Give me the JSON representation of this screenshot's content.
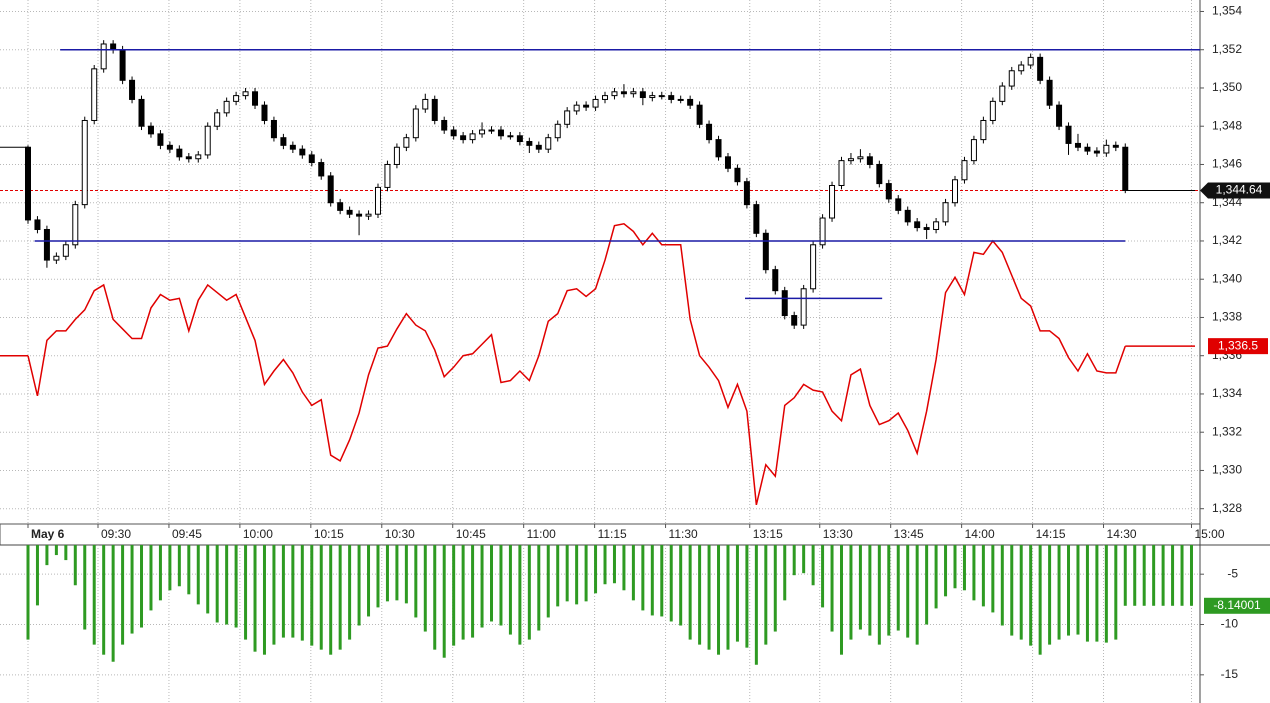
{
  "chart_data": [
    {
      "type": "candlestick",
      "xlim": [
        -2.96,
        123.9
      ],
      "xticks": [
        {
          "value": 0,
          "label": "May 6"
        },
        {
          "value": 7.4,
          "label": "09:30"
        },
        {
          "value": 14.9,
          "label": "09:45"
        },
        {
          "value": 22.4,
          "label": "10:00"
        },
        {
          "value": 29.9,
          "label": "10:15"
        },
        {
          "value": 37.4,
          "label": "10:30"
        },
        {
          "value": 44.9,
          "label": "10:45"
        },
        {
          "value": 52.4,
          "label": "11:00"
        },
        {
          "value": 59.9,
          "label": "11:15"
        },
        {
          "value": 67.4,
          "label": "11:30"
        },
        {
          "value": 76.3,
          "label": "13:15"
        },
        {
          "value": 83.7,
          "label": "13:30"
        },
        {
          "value": 91.2,
          "label": "13:45"
        },
        {
          "value": 98.7,
          "label": "14:00"
        },
        {
          "value": 106.2,
          "label": "14:15"
        },
        {
          "value": 113.7,
          "label": "14:30"
        },
        {
          "value": 123.0,
          "label": "15:00"
        }
      ],
      "ylim": [
        1327.2,
        1354.6
      ],
      "yticks": [
        {
          "value": 1328,
          "label": "1,328"
        },
        {
          "value": 1330,
          "label": "1,330"
        },
        {
          "value": 1332,
          "label": "1,332"
        },
        {
          "value": 1334,
          "label": "1,334"
        },
        {
          "value": 1336,
          "label": "1,336"
        },
        {
          "value": 1338,
          "label": "1,338"
        },
        {
          "value": 1340,
          "label": "1,340"
        },
        {
          "value": 1342,
          "label": "1,342"
        },
        {
          "value": 1344,
          "label": "1,344"
        },
        {
          "value": 1346,
          "label": "1,346"
        },
        {
          "value": 1348,
          "label": "1,348"
        },
        {
          "value": 1350,
          "label": "1,350"
        },
        {
          "value": 1352,
          "label": "1,352"
        },
        {
          "value": 1354,
          "label": "1,354"
        }
      ],
      "grid": true,
      "candle_color": "#000000",
      "candles": [
        [
          1346.9,
          1347.0,
          1342.9,
          1343.1
        ],
        [
          1343.1,
          1343.3,
          1342.4,
          1342.6
        ],
        [
          1342.6,
          1342.8,
          1340.6,
          1341.0
        ],
        [
          1341.0,
          1341.4,
          1340.8,
          1341.2
        ],
        [
          1341.2,
          1342.0,
          1341.0,
          1341.8
        ],
        [
          1341.8,
          1344.1,
          1341.6,
          1343.9
        ],
        [
          1343.9,
          1348.5,
          1343.7,
          1348.3
        ],
        [
          1348.3,
          1351.2,
          1348.1,
          1351.0
        ],
        [
          1351.0,
          1352.5,
          1350.8,
          1352.3
        ],
        [
          1352.3,
          1352.5,
          1351.8,
          1352.0
        ],
        [
          1352.0,
          1352.2,
          1350.2,
          1350.4
        ],
        [
          1350.4,
          1350.6,
          1349.2,
          1349.4
        ],
        [
          1349.4,
          1349.6,
          1347.8,
          1348.0
        ],
        [
          1348.0,
          1348.2,
          1347.4,
          1347.6
        ],
        [
          1347.6,
          1347.8,
          1346.8,
          1347.0
        ],
        [
          1347.0,
          1347.2,
          1346.6,
          1346.8
        ],
        [
          1346.8,
          1347.0,
          1346.2,
          1346.4
        ],
        [
          1346.4,
          1346.6,
          1346.1,
          1346.3
        ],
        [
          1346.3,
          1346.7,
          1346.1,
          1346.5
        ],
        [
          1346.5,
          1348.2,
          1346.3,
          1348.0
        ],
        [
          1348.0,
          1348.9,
          1347.8,
          1348.7
        ],
        [
          1348.7,
          1349.5,
          1348.5,
          1349.3
        ],
        [
          1349.3,
          1349.8,
          1349.1,
          1349.6
        ],
        [
          1349.6,
          1350.0,
          1349.4,
          1349.8
        ],
        [
          1349.8,
          1350.0,
          1348.9,
          1349.1
        ],
        [
          1349.1,
          1349.3,
          1348.1,
          1348.3
        ],
        [
          1348.3,
          1348.5,
          1347.2,
          1347.4
        ],
        [
          1347.4,
          1347.6,
          1346.8,
          1347.0
        ],
        [
          1347.0,
          1347.2,
          1346.6,
          1346.8
        ],
        [
          1346.8,
          1347.0,
          1346.3,
          1346.5
        ],
        [
          1346.5,
          1346.7,
          1345.9,
          1346.1
        ],
        [
          1346.1,
          1346.3,
          1345.2,
          1345.4
        ],
        [
          1345.4,
          1345.6,
          1343.8,
          1344.0
        ],
        [
          1344.0,
          1344.2,
          1343.4,
          1343.6
        ],
        [
          1343.6,
          1343.8,
          1343.2,
          1343.4
        ],
        [
          1343.4,
          1343.6,
          1342.3,
          1343.3
        ],
        [
          1343.3,
          1343.6,
          1343.1,
          1343.4
        ],
        [
          1343.4,
          1345.0,
          1343.2,
          1344.8
        ],
        [
          1344.8,
          1346.2,
          1344.6,
          1346.0
        ],
        [
          1346.0,
          1347.1,
          1345.8,
          1346.9
        ],
        [
          1346.9,
          1347.6,
          1346.7,
          1347.4
        ],
        [
          1347.4,
          1349.1,
          1347.2,
          1348.9
        ],
        [
          1348.9,
          1349.7,
          1348.7,
          1349.4
        ],
        [
          1349.4,
          1349.6,
          1348.1,
          1348.3
        ],
        [
          1348.3,
          1348.5,
          1347.6,
          1347.8
        ],
        [
          1347.8,
          1348.0,
          1347.3,
          1347.5
        ],
        [
          1347.5,
          1347.7,
          1347.1,
          1347.3
        ],
        [
          1347.3,
          1347.8,
          1347.1,
          1347.6
        ],
        [
          1347.6,
          1348.2,
          1347.4,
          1347.8
        ],
        [
          1347.8,
          1348.0,
          1347.6,
          1347.8
        ],
        [
          1347.8,
          1348.0,
          1347.3,
          1347.5
        ],
        [
          1347.5,
          1347.7,
          1347.3,
          1347.5
        ],
        [
          1347.5,
          1347.7,
          1347.0,
          1347.2
        ],
        [
          1347.2,
          1347.4,
          1346.6,
          1347.0
        ],
        [
          1347.0,
          1347.2,
          1346.6,
          1346.8
        ],
        [
          1346.8,
          1347.6,
          1346.6,
          1347.4
        ],
        [
          1347.4,
          1348.3,
          1347.2,
          1348.1
        ],
        [
          1348.1,
          1349.0,
          1347.9,
          1348.8
        ],
        [
          1348.8,
          1349.3,
          1348.6,
          1349.1
        ],
        [
          1349.1,
          1349.3,
          1348.8,
          1349.0
        ],
        [
          1349.0,
          1349.6,
          1348.8,
          1349.4
        ],
        [
          1349.4,
          1349.8,
          1349.2,
          1349.6
        ],
        [
          1349.6,
          1350.0,
          1349.4,
          1349.8
        ],
        [
          1349.8,
          1350.2,
          1349.5,
          1349.7
        ],
        [
          1349.7,
          1350.0,
          1349.5,
          1349.8
        ],
        [
          1349.8,
          1350.0,
          1349.1,
          1349.5
        ],
        [
          1349.5,
          1349.8,
          1349.3,
          1349.6
        ],
        [
          1349.6,
          1349.8,
          1349.4,
          1349.6
        ],
        [
          1349.6,
          1349.8,
          1349.2,
          1349.4
        ],
        [
          1349.4,
          1349.6,
          1349.2,
          1349.4
        ],
        [
          1349.4,
          1349.6,
          1348.9,
          1349.1
        ],
        [
          1349.1,
          1349.3,
          1347.9,
          1348.1
        ],
        [
          1348.1,
          1348.3,
          1347.1,
          1347.3
        ],
        [
          1347.3,
          1347.5,
          1346.2,
          1346.4
        ],
        [
          1346.4,
          1346.6,
          1345.6,
          1345.8
        ],
        [
          1345.8,
          1346.0,
          1344.9,
          1345.1
        ],
        [
          1345.1,
          1345.3,
          1343.7,
          1343.9
        ],
        [
          1343.9,
          1344.1,
          1342.2,
          1342.4
        ],
        [
          1342.4,
          1342.6,
          1340.3,
          1340.5
        ],
        [
          1340.5,
          1340.7,
          1339.2,
          1339.4
        ],
        [
          1339.4,
          1339.6,
          1337.9,
          1338.1
        ],
        [
          1338.1,
          1338.3,
          1337.4,
          1337.6
        ],
        [
          1337.6,
          1339.7,
          1337.4,
          1339.5
        ],
        [
          1339.5,
          1342.0,
          1339.3,
          1341.8
        ],
        [
          1341.8,
          1343.4,
          1341.6,
          1343.2
        ],
        [
          1343.2,
          1345.1,
          1343.0,
          1344.9
        ],
        [
          1344.9,
          1346.4,
          1344.7,
          1346.2
        ],
        [
          1346.2,
          1346.6,
          1346.0,
          1346.3
        ],
        [
          1346.3,
          1346.8,
          1346.1,
          1346.4
        ],
        [
          1346.4,
          1346.6,
          1345.8,
          1346.0
        ],
        [
          1346.0,
          1346.2,
          1344.8,
          1345.0
        ],
        [
          1345.0,
          1345.2,
          1344.0,
          1344.2
        ],
        [
          1344.2,
          1344.4,
          1343.4,
          1343.6
        ],
        [
          1343.6,
          1343.8,
          1342.8,
          1343.0
        ],
        [
          1343.0,
          1343.2,
          1342.5,
          1342.7
        ],
        [
          1342.7,
          1342.9,
          1342.1,
          1342.6
        ],
        [
          1342.6,
          1343.2,
          1342.4,
          1343.0
        ],
        [
          1343.0,
          1344.2,
          1342.8,
          1344.0
        ],
        [
          1344.0,
          1345.4,
          1343.8,
          1345.2
        ],
        [
          1345.2,
          1346.4,
          1345.0,
          1346.2
        ],
        [
          1346.2,
          1347.5,
          1346.0,
          1347.3
        ],
        [
          1347.3,
          1348.5,
          1347.1,
          1348.3
        ],
        [
          1348.3,
          1349.5,
          1348.1,
          1349.3
        ],
        [
          1349.3,
          1350.3,
          1349.1,
          1350.1
        ],
        [
          1350.1,
          1351.1,
          1349.9,
          1350.9
        ],
        [
          1350.9,
          1351.4,
          1350.7,
          1351.2
        ],
        [
          1351.2,
          1351.8,
          1351.0,
          1351.6
        ],
        [
          1351.6,
          1351.8,
          1350.2,
          1350.4
        ],
        [
          1350.4,
          1350.6,
          1348.9,
          1349.1
        ],
        [
          1349.1,
          1349.3,
          1347.8,
          1348.0
        ],
        [
          1348.0,
          1348.2,
          1346.5,
          1347.1
        ],
        [
          1347.1,
          1347.6,
          1346.7,
          1346.9
        ],
        [
          1346.9,
          1347.1,
          1346.5,
          1346.7
        ],
        [
          1346.7,
          1346.9,
          1346.4,
          1346.6
        ],
        [
          1346.6,
          1347.3,
          1346.4,
          1347.0
        ],
        [
          1347.0,
          1347.2,
          1346.7,
          1346.9
        ],
        [
          1346.9,
          1347.1,
          1344.5,
          1344.64
        ]
      ],
      "last_label": "1,344.64",
      "last_line_color": "#e00000",
      "series": [
        {
          "type": "line",
          "color": "#e00000",
          "last_label": "1,336.5",
          "values": [
            1336.0,
            1333.9,
            1336.8,
            1337.3,
            1337.3,
            1337.9,
            1338.4,
            1339.4,
            1339.7,
            1337.9,
            1337.4,
            1336.9,
            1336.9,
            1338.5,
            1339.2,
            1338.9,
            1339.0,
            1337.3,
            1338.9,
            1339.7,
            1339.3,
            1338.9,
            1339.2,
            1338.0,
            1336.8,
            1334.5,
            1335.2,
            1335.8,
            1335.1,
            1334.1,
            1333.4,
            1333.7,
            1330.8,
            1330.5,
            1331.6,
            1333.0,
            1335.0,
            1336.4,
            1336.5,
            1337.4,
            1338.2,
            1337.6,
            1337.3,
            1336.3,
            1334.9,
            1335.4,
            1336.0,
            1336.1,
            1336.6,
            1337.1,
            1334.6,
            1334.7,
            1335.2,
            1334.7,
            1336.0,
            1337.8,
            1338.2,
            1339.4,
            1339.5,
            1339.1,
            1339.5,
            1341.0,
            1342.8,
            1342.9,
            1342.5,
            1341.8,
            1342.4,
            1341.8,
            1341.8,
            1341.8,
            1337.9,
            1336.0,
            1335.4,
            1334.7,
            1333.3,
            1334.5,
            1333.1,
            1328.2,
            1330.3,
            1329.7,
            1333.4,
            1333.8,
            1334.5,
            1334.2,
            1334.1,
            1333.1,
            1332.6,
            1335.0,
            1335.3,
            1333.4,
            1332.4,
            1332.6,
            1333.0,
            1332.1,
            1330.9,
            1333.1,
            1335.8,
            1339.3,
            1340.1,
            1339.2,
            1341.4,
            1341.3,
            1342.0,
            1341.4,
            1340.2,
            1339.0,
            1338.6,
            1337.3,
            1337.3,
            1336.9,
            1335.9,
            1335.2,
            1336.1,
            1335.2,
            1335.1,
            1335.1,
            1336.5
          ]
        }
      ],
      "level_color": "#1a1aa6",
      "levels": [
        {
          "value": 1352,
          "x": [
            3.4,
            123.9
          ]
        },
        {
          "value": 1342,
          "x": [
            0.7,
            116
          ]
        },
        {
          "value": 1339,
          "x": [
            75.8,
            90.3
          ]
        }
      ]
    },
    {
      "type": "bar",
      "color": "#2e9a22",
      "ylim": [
        -17.8,
        -2.1
      ],
      "yticks": [
        -5,
        -10,
        -15
      ],
      "grid": true,
      "values": [
        -11.5,
        -8.1,
        -4.1,
        -3.1,
        -3.6,
        -6.1,
        -10.5,
        -12.0,
        -13.0,
        -13.7,
        -12.0,
        -10.9,
        -10.3,
        -8.6,
        -7.6,
        -6.6,
        -6.2,
        -7.0,
        -8.0,
        -8.9,
        -9.8,
        -10.0,
        -10.3,
        -11.5,
        -12.7,
        -13.0,
        -12.0,
        -11.3,
        -11.3,
        -11.6,
        -12.1,
        -12.5,
        -13.0,
        -12.5,
        -11.5,
        -10.1,
        -9.2,
        -8.3,
        -7.7,
        -7.6,
        -7.9,
        -9.3,
        -10.7,
        -12.5,
        -13.3,
        -12.1,
        -11.5,
        -11.3,
        -10.3,
        -9.7,
        -10.1,
        -11.0,
        -12.0,
        -11.5,
        -10.6,
        -9.3,
        -8.2,
        -7.7,
        -8.0,
        -7.7,
        -6.9,
        -6.0,
        -5.9,
        -6.6,
        -7.6,
        -8.6,
        -9.1,
        -9.2,
        -9.7,
        -10.1,
        -11.5,
        -12.0,
        -12.5,
        -13.0,
        -12.5,
        -11.7,
        -12.3,
        -14.0,
        -12.0,
        -10.7,
        -7.6,
        -5.1,
        -4.9,
        -6.1,
        -8.3,
        -10.7,
        -13.0,
        -11.5,
        -10.5,
        -11.1,
        -12.0,
        -11.1,
        -10.6,
        -11.3,
        -12.0,
        -10.0,
        -8.4,
        -7.2,
        -6.4,
        -6.6,
        -7.6,
        -8.2,
        -8.8,
        -10.1,
        -11.1,
        -11.5,
        -12.1,
        -13.0,
        -12.0,
        -11.5,
        -11.1,
        -11.0,
        -11.7,
        -11.7,
        -11.8,
        -11.5,
        -8.14,
        -8.14,
        -8.14,
        -8.14,
        -8.14,
        -8.14,
        -8.14,
        -8.14001
      ]
    }
  ]
}
